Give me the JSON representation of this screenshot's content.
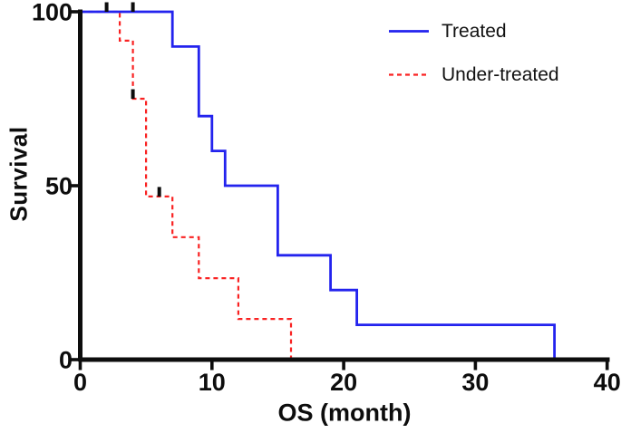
{
  "chart_data": {
    "type": "line",
    "subtype": "kaplan-meier-step",
    "title": "",
    "xlabel": "OS (month)",
    "ylabel": "Survival",
    "xlim": [
      0,
      40
    ],
    "ylim": [
      0,
      100
    ],
    "x_ticks": [
      0,
      10,
      20,
      30,
      40
    ],
    "y_ticks": [
      0,
      50,
      100
    ],
    "grid": false,
    "legend_position": "top-right",
    "axis_color": "#0d0d0d",
    "censor_color": "#0d0d0d",
    "series": [
      {
        "name": "Treated",
        "color": "#2323ee",
        "style": "solid",
        "points": [
          [
            0,
            100
          ],
          [
            7,
            100
          ],
          [
            7,
            90
          ],
          [
            9,
            90
          ],
          [
            9,
            70
          ],
          [
            10,
            70
          ],
          [
            10,
            60
          ],
          [
            11,
            60
          ],
          [
            11,
            50
          ],
          [
            15,
            50
          ],
          [
            15,
            30
          ],
          [
            19,
            30
          ],
          [
            19,
            20
          ],
          [
            21,
            20
          ],
          [
            21,
            10
          ],
          [
            36,
            10
          ],
          [
            36,
            0
          ]
        ],
        "censor_points": [
          [
            2,
            100
          ],
          [
            4,
            100
          ]
        ]
      },
      {
        "name": "Under-treated",
        "color": "#f92222",
        "style": "dashed",
        "points": [
          [
            0,
            100
          ],
          [
            3,
            100
          ],
          [
            3,
            91.7
          ],
          [
            4,
            91.7
          ],
          [
            4,
            75
          ],
          [
            5,
            75
          ],
          [
            5,
            46.9
          ],
          [
            7,
            46.9
          ],
          [
            7,
            35.2
          ],
          [
            9,
            35.2
          ],
          [
            9,
            23.4
          ],
          [
            12,
            23.4
          ],
          [
            12,
            11.7
          ],
          [
            16,
            11.7
          ],
          [
            16,
            0
          ]
        ],
        "censor_points": [
          [
            4,
            75
          ],
          [
            6,
            46.9
          ]
        ]
      }
    ]
  }
}
